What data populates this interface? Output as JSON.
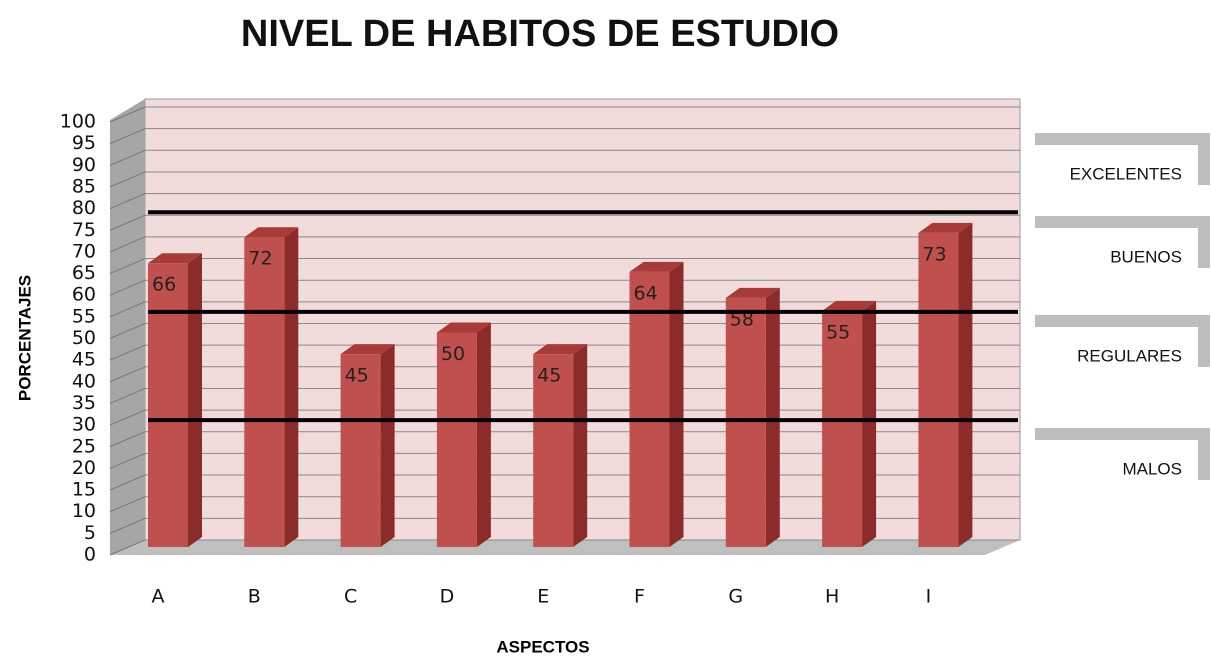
{
  "chart_data": {
    "type": "bar",
    "title": "NIVEL DE HABITOS DE ESTUDIO",
    "x_label": "ASPECTOS",
    "y_label": "PORCENTAJES",
    "categories": [
      "A",
      "B",
      "C",
      "D",
      "E",
      "F",
      "G",
      "H",
      "I"
    ],
    "values": [
      66,
      72,
      45,
      50,
      45,
      64,
      58,
      55,
      73
    ],
    "color": "#c0504d",
    "ylim": [
      0,
      100
    ],
    "yticks": [
      0,
      5,
      10,
      15,
      20,
      25,
      30,
      35,
      40,
      45,
      50,
      55,
      60,
      65,
      70,
      75,
      80,
      85,
      90,
      95,
      100
    ],
    "grid": true,
    "reference_lines": [
      78,
      55,
      30
    ],
    "band_labels": [
      "EXCELENTES",
      "BUENOS",
      "REGULARES",
      "MALOS"
    ]
  }
}
